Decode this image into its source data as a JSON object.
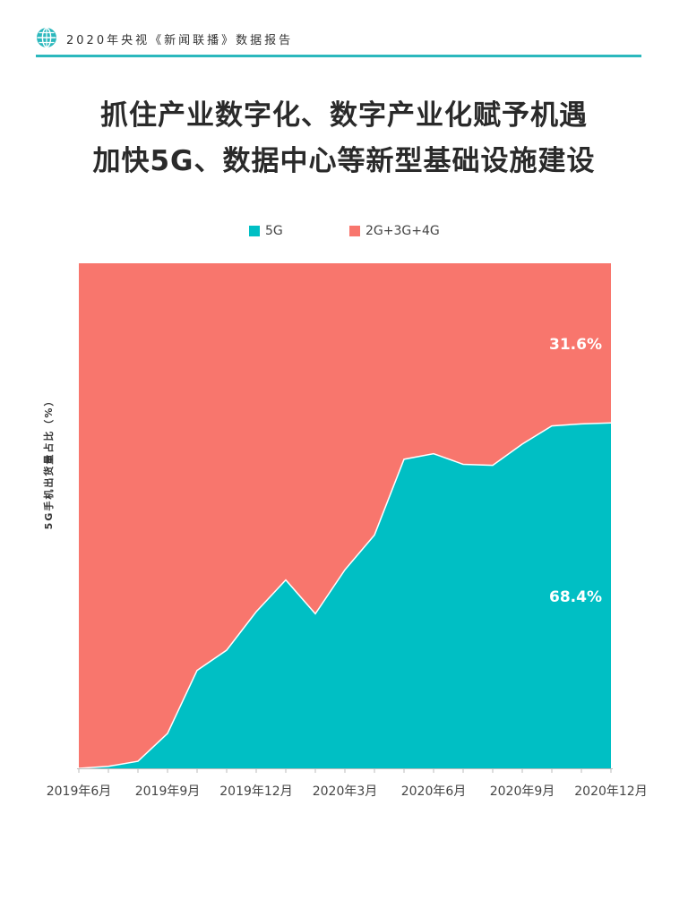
{
  "header": {
    "title": "2020年央视《新闻联播》数据报告",
    "icon": "globe-icon",
    "accent_color": "#2bb8bd"
  },
  "title_lines": [
    "抓住产业数字化、数字产业化赋予机遇",
    "加快5G、数据中心等新型基础设施建设"
  ],
  "chart_data": {
    "type": "area",
    "stacked": true,
    "percent": true,
    "ylabel": "5G手机出货量占比（%）",
    "xlabel": "",
    "ylim": [
      0,
      100
    ],
    "grid": false,
    "legend_position": "top",
    "x": [
      "2019年6月",
      "2019年7月",
      "2019年8月",
      "2019年9月",
      "2019年10月",
      "2019年11月",
      "2019年12月",
      "2020年1月",
      "2020年2月",
      "2020年3月",
      "2020年4月",
      "2020年5月",
      "2020年6月",
      "2020年7月",
      "2020年8月",
      "2020年9月",
      "2020年10月",
      "2020年11月",
      "2020年12月"
    ],
    "tick_labels": [
      "2019年6月",
      "2019年9月",
      "2019年12月",
      "2020年3月",
      "2020年6月",
      "2020年9月",
      "2020年12月"
    ],
    "tick_indices": [
      0,
      3,
      6,
      9,
      12,
      15,
      18
    ],
    "series": [
      {
        "name": "5G",
        "color": "#00bfc4",
        "values": [
          0.0,
          0.4,
          1.4,
          6.9,
          19.4,
          23.4,
          31.0,
          37.3,
          30.6,
          39.3,
          46.2,
          61.2,
          62.3,
          60.2,
          60.0,
          64.2,
          67.8,
          68.2,
          68.4
        ]
      },
      {
        "name": "2G+3G+4G",
        "color": "#f8766d",
        "values": [
          100.0,
          99.6,
          98.6,
          93.1,
          80.6,
          76.6,
          69.0,
          62.7,
          69.4,
          60.7,
          53.8,
          38.8,
          37.7,
          39.8,
          40.0,
          35.8,
          32.2,
          31.8,
          31.6
        ]
      }
    ],
    "annotations": [
      {
        "series": "5G",
        "text": "68.4%"
      },
      {
        "series": "2G+3G+4G",
        "text": "31.6%"
      }
    ]
  }
}
